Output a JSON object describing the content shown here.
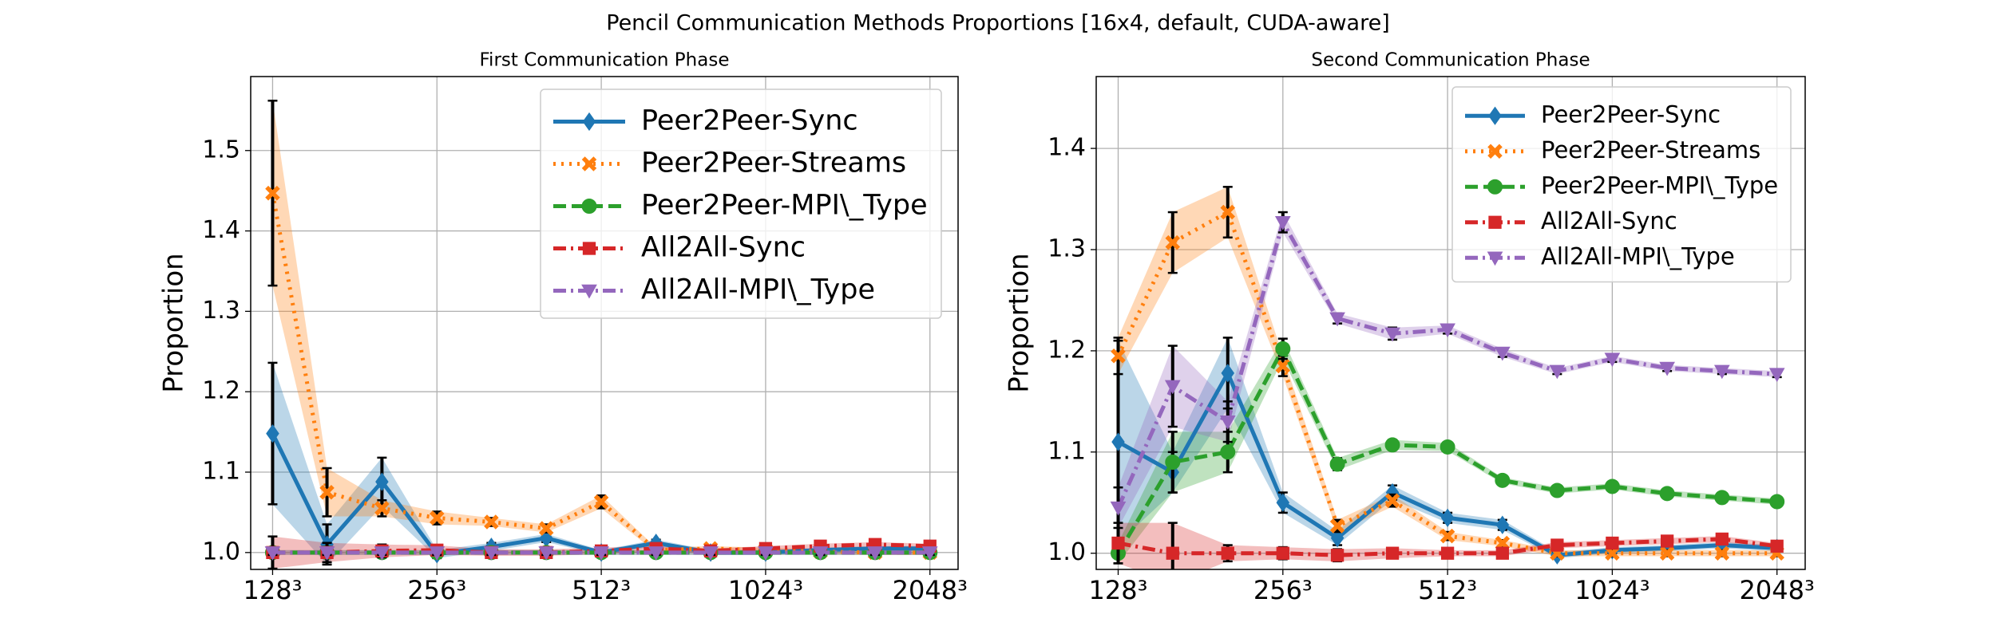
{
  "title": "Pencil Communication Methods Proportions [16x4, default, CUDA-aware]",
  "chart_data": [
    {
      "type": "line",
      "title": "First Communication Phase",
      "ylabel": "Proportion",
      "x": [
        128,
        161,
        203,
        256,
        322,
        406,
        512,
        645,
        812,
        1024,
        1290,
        1625,
        2048
      ],
      "xscale": "log",
      "xlim": [
        116.7,
        2306
      ],
      "xticks": [
        {
          "value": 128,
          "label": "128³"
        },
        {
          "value": 256,
          "label": "256³"
        },
        {
          "value": 512,
          "label": "512³"
        },
        {
          "value": 1024,
          "label": "1024³"
        },
        {
          "value": 2048,
          "label": "2048³"
        }
      ],
      "ylim": [
        0.979,
        1.592
      ],
      "yticks": [
        {
          "value": 1.0,
          "label": "1.0"
        },
        {
          "value": 1.1,
          "label": "1.1"
        },
        {
          "value": 1.2,
          "label": "1.2"
        },
        {
          "value": 1.3,
          "label": "1.3"
        },
        {
          "value": 1.4,
          "label": "1.4"
        },
        {
          "value": 1.5,
          "label": "1.5"
        }
      ],
      "grid": true,
      "legend": "upper right",
      "series": [
        {
          "name": "Peer2Peer-Sync",
          "color": "#1f77b4",
          "marker": "diamond",
          "linestyle": "solid",
          "values": [
            1.148,
            1.01,
            1.088,
            0.998,
            1.007,
            1.018,
            1.0,
            1.012,
            1.0,
            1.0,
            1.003,
            1.005,
            1.005
          ],
          "errors": [
            0.088,
            0.025,
            0.03,
            0.005,
            0.005,
            0.005,
            0.003,
            0.004,
            0.003,
            0.003,
            0.003,
            0.003,
            0.003
          ]
        },
        {
          "name": "Peer2Peer-Streams",
          "color": "#ff7f0e",
          "marker": "x",
          "linestyle": "dotted",
          "values": [
            1.447,
            1.075,
            1.055,
            1.043,
            1.038,
            1.03,
            1.063,
            1.003,
            1.005,
            1.003,
            1.001,
            1.0,
            1.0
          ],
          "errors": [
            0.115,
            0.03,
            0.01,
            0.008,
            0.005,
            0.005,
            0.008,
            0.003,
            0.003,
            0.003,
            0.003,
            0.003,
            0.003
          ]
        },
        {
          "name": "Peer2Peer-MPI\\_Type",
          "color": "#2ca02c",
          "marker": "circle",
          "linestyle": "dashed",
          "values": [
            1.0,
            1.0,
            1.0,
            1.0,
            1.0,
            1.0,
            1.0,
            1.0,
            1.0,
            1.0,
            1.0,
            1.0,
            1.0
          ],
          "errors": [
            0.003,
            0.003,
            0.003,
            0.003,
            0.003,
            0.003,
            0.003,
            0.003,
            0.003,
            0.003,
            0.003,
            0.003,
            0.003
          ]
        },
        {
          "name": "All2All-Sync",
          "color": "#d62728",
          "marker": "square",
          "linestyle": "dashdot",
          "values": [
            1.0,
            1.0,
            1.002,
            1.003,
            1.0,
            1.0,
            1.002,
            1.005,
            1.002,
            1.005,
            1.008,
            1.01,
            1.008
          ],
          "errors": [
            0.02,
            0.012,
            0.008,
            0.006,
            0.004,
            0.004,
            0.004,
            0.004,
            0.003,
            0.003,
            0.003,
            0.003,
            0.003
          ]
        },
        {
          "name": "All2All-MPI\\_Type",
          "color": "#9467bd",
          "marker": "triangle",
          "linestyle": "dashdot",
          "values": [
            1.0,
            1.0,
            1.0,
            1.0,
            1.0,
            1.0,
            1.0,
            1.0,
            1.0,
            1.0,
            1.0,
            1.0,
            1.0
          ],
          "errors": [
            0.003,
            0.003,
            0.003,
            0.003,
            0.003,
            0.003,
            0.003,
            0.003,
            0.003,
            0.003,
            0.003,
            0.003,
            0.003
          ]
        }
      ]
    },
    {
      "type": "line",
      "title": "Second Communication Phase",
      "ylabel": "Proportion",
      "x": [
        128,
        161,
        203,
        256,
        322,
        406,
        512,
        645,
        812,
        1024,
        1290,
        1625,
        2048
      ],
      "xscale": "log",
      "xlim": [
        116.7,
        2306
      ],
      "xticks": [
        {
          "value": 128,
          "label": "128³"
        },
        {
          "value": 256,
          "label": "256³"
        },
        {
          "value": 512,
          "label": "512³"
        },
        {
          "value": 1024,
          "label": "1024³"
        },
        {
          "value": 2048,
          "label": "2048³"
        }
      ],
      "ylim": [
        0.984,
        1.471
      ],
      "yticks": [
        {
          "value": 1.0,
          "label": "1.0"
        },
        {
          "value": 1.1,
          "label": "1.1"
        },
        {
          "value": 1.2,
          "label": "1.2"
        },
        {
          "value": 1.3,
          "label": "1.3"
        },
        {
          "value": 1.4,
          "label": "1.4"
        }
      ],
      "grid": true,
      "legend": "upper right",
      "series": [
        {
          "name": "Peer2Peer-Sync",
          "color": "#1f77b4",
          "marker": "diamond",
          "linestyle": "solid",
          "values": [
            1.11,
            1.08,
            1.178,
            1.05,
            1.015,
            1.06,
            1.035,
            1.028,
            0.998,
            1.003,
            1.005,
            1.008,
            1.005
          ],
          "errors": [
            0.1,
            0.02,
            0.035,
            0.01,
            0.007,
            0.007,
            0.005,
            0.005,
            0.003,
            0.003,
            0.003,
            0.003,
            0.003
          ]
        },
        {
          "name": "Peer2Peer-Streams",
          "color": "#ff7f0e",
          "marker": "x",
          "linestyle": "dotted",
          "values": [
            1.195,
            1.307,
            1.337,
            1.185,
            1.027,
            1.052,
            1.017,
            1.01,
            1.0,
            1.0,
            1.0,
            1.0,
            1.0
          ],
          "errors": [
            0.018,
            0.03,
            0.025,
            0.01,
            0.006,
            0.006,
            0.004,
            0.003,
            0.003,
            0.003,
            0.003,
            0.003,
            0.003
          ]
        },
        {
          "name": "Peer2Peer-MPI\\_Type",
          "color": "#2ca02c",
          "marker": "circle",
          "linestyle": "dashed",
          "values": [
            1.0,
            1.09,
            1.1,
            1.202,
            1.088,
            1.107,
            1.105,
            1.072,
            1.062,
            1.066,
            1.059,
            1.055,
            1.051
          ],
          "errors": [
            0.01,
            0.03,
            0.02,
            0.01,
            0.006,
            0.005,
            0.004,
            0.003,
            0.003,
            0.003,
            0.003,
            0.003,
            0.003
          ]
        },
        {
          "name": "All2All-Sync",
          "color": "#d62728",
          "marker": "square",
          "linestyle": "dashdot",
          "values": [
            1.01,
            1.0,
            1.0,
            1.0,
            0.998,
            1.0,
            1.0,
            1.0,
            1.008,
            1.01,
            1.012,
            1.014,
            1.007
          ],
          "errors": [
            0.02,
            0.03,
            0.008,
            0.006,
            0.006,
            0.005,
            0.003,
            0.003,
            0.003,
            0.003,
            0.003,
            0.003,
            0.003
          ]
        },
        {
          "name": "All2All-MPI\\_Type",
          "color": "#9467bd",
          "marker": "triangle",
          "linestyle": "dashdot",
          "values": [
            1.045,
            1.165,
            1.13,
            1.327,
            1.232,
            1.217,
            1.221,
            1.198,
            1.18,
            1.192,
            1.183,
            1.18,
            1.177
          ],
          "errors": [
            0.02,
            0.04,
            0.02,
            0.01,
            0.005,
            0.006,
            0.004,
            0.004,
            0.003,
            0.003,
            0.003,
            0.003,
            0.003
          ]
        }
      ]
    }
  ]
}
